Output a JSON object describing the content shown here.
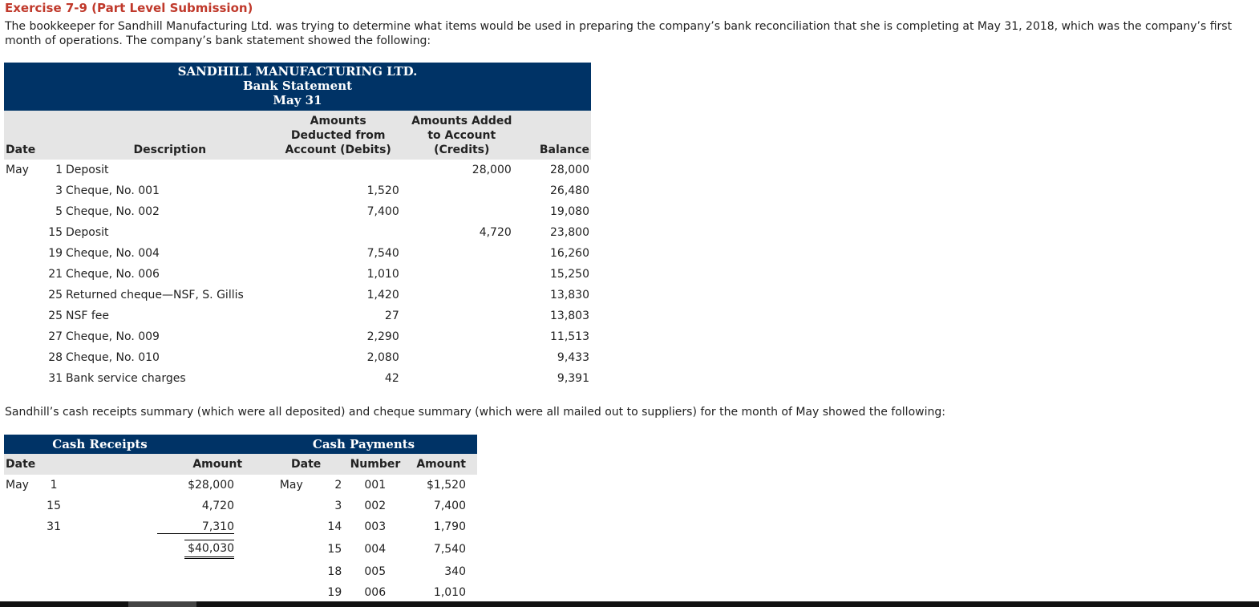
{
  "title": "Exercise 7-9 (Part Level Submission)",
  "intro": "The bookkeeper for Sandhill Manufacturing Ltd. was trying to determine what items would be used in preparing the company’s bank reconciliation that she is completing at May 31, 2018, which was the company’s first month of operations. The company’s bank statement showed the following:",
  "bank": {
    "company": "SANDHILL MANUFACTURING LTD.",
    "doc": "Bank Statement",
    "date": "May 31",
    "col_date": "Date",
    "col_desc": "Description",
    "col_debit_1": "Amounts",
    "col_debit_2": "Deducted from",
    "col_debit_3": "Account (Debits)",
    "col_credit_1": "Amounts Added",
    "col_credit_2": "to Account",
    "col_credit_3": "(Credits)",
    "col_balance": "Balance",
    "rows": [
      {
        "month": "May",
        "day": "1",
        "desc": "Deposit",
        "debit": "",
        "credit": "28,000",
        "balance": "28,000"
      },
      {
        "month": "",
        "day": "3",
        "desc": "Cheque, No. 001",
        "debit": "1,520",
        "credit": "",
        "balance": "26,480"
      },
      {
        "month": "",
        "day": "5",
        "desc": "Cheque, No. 002",
        "debit": "7,400",
        "credit": "",
        "balance": "19,080"
      },
      {
        "month": "",
        "day": "15",
        "desc": "Deposit",
        "debit": "",
        "credit": "4,720",
        "balance": "23,800"
      },
      {
        "month": "",
        "day": "19",
        "desc": "Cheque, No. 004",
        "debit": "7,540",
        "credit": "",
        "balance": "16,260"
      },
      {
        "month": "",
        "day": "21",
        "desc": "Cheque, No. 006",
        "debit": "1,010",
        "credit": "",
        "balance": "15,250"
      },
      {
        "month": "",
        "day": "25",
        "desc": "Returned cheque—NSF, S. Gillis",
        "debit": "1,420",
        "credit": "",
        "balance": "13,830"
      },
      {
        "month": "",
        "day": "25",
        "desc": "NSF fee",
        "debit": "27",
        "credit": "",
        "balance": "13,803"
      },
      {
        "month": "",
        "day": "27",
        "desc": "Cheque, No. 009",
        "debit": "2,290",
        "credit": "",
        "balance": "11,513"
      },
      {
        "month": "",
        "day": "28",
        "desc": "Cheque, No. 010",
        "debit": "2,080",
        "credit": "",
        "balance": "9,433"
      },
      {
        "month": "",
        "day": "31",
        "desc": "Bank service charges",
        "debit": "42",
        "credit": "",
        "balance": "9,391"
      }
    ]
  },
  "summary_text": "Sandhill’s cash receipts summary (which were all deposited) and cheque summary (which were all mailed out to suppliers) for the month of May showed the following:",
  "cash": {
    "receipts_title": "Cash Receipts",
    "payments_title": "Cash Payments",
    "col_date": "Date",
    "col_amount": "Amount",
    "col_number": "Number",
    "rows": [
      {
        "r_month": "May",
        "r_day": "1",
        "r_amount": "$28,000",
        "p_month": "May",
        "p_day": "2",
        "p_number": "001",
        "p_amount": "$1,520"
      },
      {
        "r_month": "",
        "r_day": "15",
        "r_amount": "4,720",
        "p_month": "",
        "p_day": "3",
        "p_number": "002",
        "p_amount": "7,400"
      },
      {
        "r_month": "",
        "r_day": "31",
        "r_amount": "7,310",
        "p_month": "",
        "p_day": "14",
        "p_number": "003",
        "p_amount": "1,790"
      },
      {
        "r_month": "",
        "r_day": "",
        "r_amount": "$40,030",
        "p_month": "",
        "p_day": "15",
        "p_number": "004",
        "p_amount": "7,540"
      },
      {
        "r_month": "",
        "r_day": "",
        "r_amount": "",
        "p_month": "",
        "p_day": "18",
        "p_number": "005",
        "p_amount": "340"
      },
      {
        "r_month": "",
        "r_day": "",
        "r_amount": "",
        "p_month": "",
        "p_day": "19",
        "p_number": "006",
        "p_amount": "1,010"
      }
    ]
  }
}
